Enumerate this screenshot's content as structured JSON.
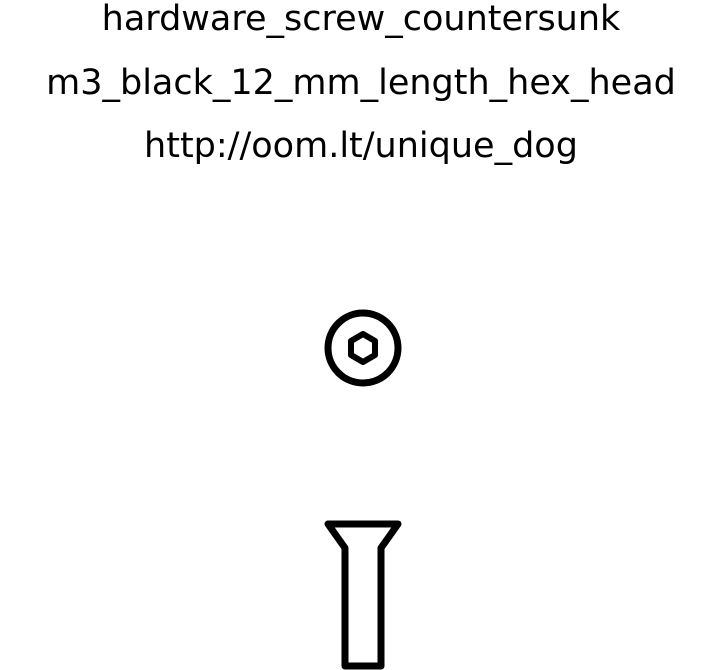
{
  "labels": {
    "line1": "hardware_screw_countersunk",
    "line2": "m3_black_12_mm_length_hex_head",
    "line3": "http://oom.lt/unique_dog"
  },
  "colors": {
    "stroke": "#000000",
    "background": "#ffffff"
  },
  "icons": {
    "top_view": "screw-head-top-view-icon",
    "side_view": "screw-side-view-icon"
  }
}
